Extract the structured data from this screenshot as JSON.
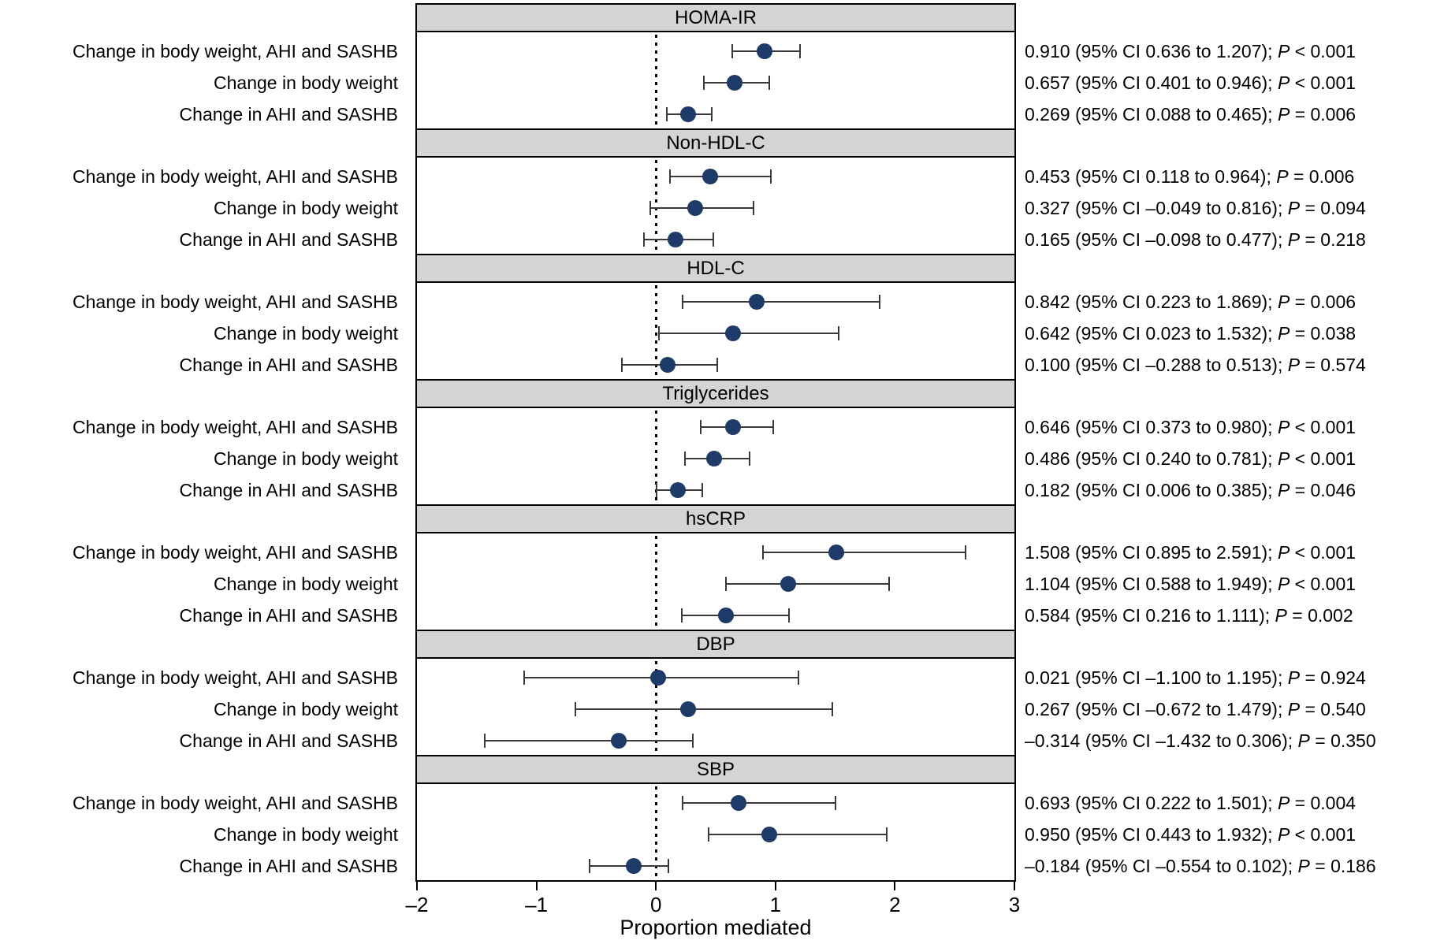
{
  "chart_data": {
    "type": "forest",
    "xlabel": "Proportion mediated",
    "xlim": [
      -2,
      3
    ],
    "x_ticks": [
      {
        "v": -2,
        "label": "–2"
      },
      {
        "v": -1,
        "label": "–1"
      },
      {
        "v": 0,
        "label": "0"
      },
      {
        "v": 1,
        "label": "1"
      },
      {
        "v": 2,
        "label": "2"
      },
      {
        "v": 3,
        "label": "3"
      }
    ],
    "zero_reference_line": 0,
    "p_label": "P",
    "row_labels": [
      "Change in body weight, AHI and SASHB",
      "Change in body weight",
      "Change in AHI and SASHB"
    ],
    "sections": [
      {
        "title": "HOMA-IR",
        "rows": [
          {
            "est": 0.91,
            "lo": 0.636,
            "hi": 1.207,
            "ci_text": "0.910 (95% CI 0.636 to 1.207); ",
            "p_rest": " < 0.001"
          },
          {
            "est": 0.657,
            "lo": 0.401,
            "hi": 0.946,
            "ci_text": "0.657 (95% CI 0.401 to 0.946); ",
            "p_rest": " < 0.001"
          },
          {
            "est": 0.269,
            "lo": 0.088,
            "hi": 0.465,
            "ci_text": "0.269 (95% CI 0.088 to 0.465); ",
            "p_rest": " = 0.006"
          }
        ]
      },
      {
        "title": "Non-HDL-C",
        "rows": [
          {
            "est": 0.453,
            "lo": 0.118,
            "hi": 0.964,
            "ci_text": "0.453 (95% CI 0.118 to 0.964); ",
            "p_rest": " = 0.006"
          },
          {
            "est": 0.327,
            "lo": -0.049,
            "hi": 0.816,
            "ci_text": "0.327 (95% CI –0.049 to 0.816); ",
            "p_rest": " = 0.094"
          },
          {
            "est": 0.165,
            "lo": -0.098,
            "hi": 0.477,
            "ci_text": "0.165 (95% CI –0.098 to 0.477); ",
            "p_rest": " = 0.218"
          }
        ]
      },
      {
        "title": "HDL-C",
        "rows": [
          {
            "est": 0.842,
            "lo": 0.223,
            "hi": 1.869,
            "ci_text": "0.842 (95% CI 0.223 to 1.869); ",
            "p_rest": " = 0.006"
          },
          {
            "est": 0.642,
            "lo": 0.023,
            "hi": 1.532,
            "ci_text": "0.642 (95% CI 0.023 to 1.532); ",
            "p_rest": " = 0.038"
          },
          {
            "est": 0.1,
            "lo": -0.288,
            "hi": 0.513,
            "ci_text": "0.100 (95% CI –0.288 to 0.513); ",
            "p_rest": " = 0.574"
          }
        ]
      },
      {
        "title": "Triglycerides",
        "rows": [
          {
            "est": 0.646,
            "lo": 0.373,
            "hi": 0.98,
            "ci_text": "0.646 (95% CI 0.373 to 0.980); ",
            "p_rest": " < 0.001"
          },
          {
            "est": 0.486,
            "lo": 0.24,
            "hi": 0.781,
            "ci_text": "0.486 (95% CI 0.240 to 0.781); ",
            "p_rest": " < 0.001"
          },
          {
            "est": 0.182,
            "lo": 0.006,
            "hi": 0.385,
            "ci_text": "0.182 (95% CI 0.006 to 0.385); ",
            "p_rest": " = 0.046"
          }
        ]
      },
      {
        "title": "hsCRP",
        "rows": [
          {
            "est": 1.508,
            "lo": 0.895,
            "hi": 2.591,
            "ci_text": "1.508 (95% CI 0.895 to 2.591); ",
            "p_rest": " < 0.001"
          },
          {
            "est": 1.104,
            "lo": 0.588,
            "hi": 1.949,
            "ci_text": "1.104 (95% CI 0.588 to 1.949); ",
            "p_rest": " < 0.001"
          },
          {
            "est": 0.584,
            "lo": 0.216,
            "hi": 1.111,
            "ci_text": "0.584 (95% CI 0.216 to 1.111); ",
            "p_rest": " = 0.002"
          }
        ]
      },
      {
        "title": "DBP",
        "rows": [
          {
            "est": 0.021,
            "lo": -1.1,
            "hi": 1.195,
            "ci_text": "0.021 (95% CI –1.100 to 1.195); ",
            "p_rest": " = 0.924"
          },
          {
            "est": 0.267,
            "lo": -0.672,
            "hi": 1.479,
            "ci_text": "0.267 (95% CI –0.672 to 1.479); ",
            "p_rest": " = 0.540"
          },
          {
            "est": -0.314,
            "lo": -1.432,
            "hi": 0.306,
            "ci_text": "–0.314 (95% CI –1.432 to 0.306); ",
            "p_rest": " = 0.350"
          }
        ]
      },
      {
        "title": "SBP",
        "rows": [
          {
            "est": 0.693,
            "lo": 0.222,
            "hi": 1.501,
            "ci_text": "0.693 (95% CI 0.222 to 1.501); ",
            "p_rest": " = 0.004"
          },
          {
            "est": 0.95,
            "lo": 0.443,
            "hi": 1.932,
            "ci_text": "0.950 (95% CI 0.443 to 1.932); ",
            "p_rest": " < 0.001"
          },
          {
            "est": -0.184,
            "lo": -0.554,
            "hi": 0.102,
            "ci_text": "–0.184 (95% CI –0.554 to 0.102); ",
            "p_rest": " = 0.186"
          }
        ]
      }
    ],
    "colors": {
      "dot": "#1d3a68",
      "header_bg": "#d4d4d4",
      "frame": "#000000",
      "whisker": "#3a3a3a"
    }
  }
}
